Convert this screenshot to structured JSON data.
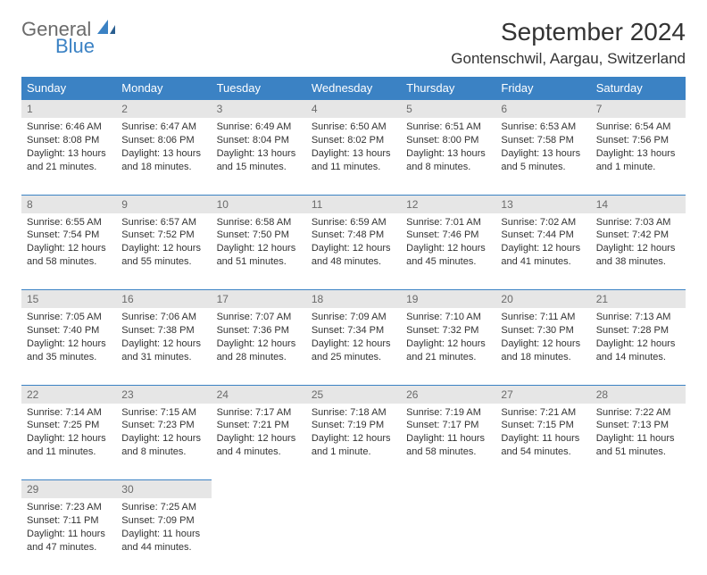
{
  "logo": {
    "general": "General",
    "blue": "Blue"
  },
  "title": "September 2024",
  "location": "Gontenschwil, Aargau, Switzerland",
  "colors": {
    "header_bg": "#3b82c4",
    "header_text": "#ffffff",
    "daynum_bg": "#e6e6e6",
    "daynum_text": "#6b6b6b",
    "border": "#3b82c4",
    "body_text": "#333333",
    "logo_gray": "#6b6b6b",
    "logo_blue": "#3b82c4"
  },
  "weekdays": [
    "Sunday",
    "Monday",
    "Tuesday",
    "Wednesday",
    "Thursday",
    "Friday",
    "Saturday"
  ],
  "weeks": [
    [
      {
        "n": "1",
        "sunrise": "Sunrise: 6:46 AM",
        "sunset": "Sunset: 8:08 PM",
        "day1": "Daylight: 13 hours",
        "day2": "and 21 minutes."
      },
      {
        "n": "2",
        "sunrise": "Sunrise: 6:47 AM",
        "sunset": "Sunset: 8:06 PM",
        "day1": "Daylight: 13 hours",
        "day2": "and 18 minutes."
      },
      {
        "n": "3",
        "sunrise": "Sunrise: 6:49 AM",
        "sunset": "Sunset: 8:04 PM",
        "day1": "Daylight: 13 hours",
        "day2": "and 15 minutes."
      },
      {
        "n": "4",
        "sunrise": "Sunrise: 6:50 AM",
        "sunset": "Sunset: 8:02 PM",
        "day1": "Daylight: 13 hours",
        "day2": "and 11 minutes."
      },
      {
        "n": "5",
        "sunrise": "Sunrise: 6:51 AM",
        "sunset": "Sunset: 8:00 PM",
        "day1": "Daylight: 13 hours",
        "day2": "and 8 minutes."
      },
      {
        "n": "6",
        "sunrise": "Sunrise: 6:53 AM",
        "sunset": "Sunset: 7:58 PM",
        "day1": "Daylight: 13 hours",
        "day2": "and 5 minutes."
      },
      {
        "n": "7",
        "sunrise": "Sunrise: 6:54 AM",
        "sunset": "Sunset: 7:56 PM",
        "day1": "Daylight: 13 hours",
        "day2": "and 1 minute."
      }
    ],
    [
      {
        "n": "8",
        "sunrise": "Sunrise: 6:55 AM",
        "sunset": "Sunset: 7:54 PM",
        "day1": "Daylight: 12 hours",
        "day2": "and 58 minutes."
      },
      {
        "n": "9",
        "sunrise": "Sunrise: 6:57 AM",
        "sunset": "Sunset: 7:52 PM",
        "day1": "Daylight: 12 hours",
        "day2": "and 55 minutes."
      },
      {
        "n": "10",
        "sunrise": "Sunrise: 6:58 AM",
        "sunset": "Sunset: 7:50 PM",
        "day1": "Daylight: 12 hours",
        "day2": "and 51 minutes."
      },
      {
        "n": "11",
        "sunrise": "Sunrise: 6:59 AM",
        "sunset": "Sunset: 7:48 PM",
        "day1": "Daylight: 12 hours",
        "day2": "and 48 minutes."
      },
      {
        "n": "12",
        "sunrise": "Sunrise: 7:01 AM",
        "sunset": "Sunset: 7:46 PM",
        "day1": "Daylight: 12 hours",
        "day2": "and 45 minutes."
      },
      {
        "n": "13",
        "sunrise": "Sunrise: 7:02 AM",
        "sunset": "Sunset: 7:44 PM",
        "day1": "Daylight: 12 hours",
        "day2": "and 41 minutes."
      },
      {
        "n": "14",
        "sunrise": "Sunrise: 7:03 AM",
        "sunset": "Sunset: 7:42 PM",
        "day1": "Daylight: 12 hours",
        "day2": "and 38 minutes."
      }
    ],
    [
      {
        "n": "15",
        "sunrise": "Sunrise: 7:05 AM",
        "sunset": "Sunset: 7:40 PM",
        "day1": "Daylight: 12 hours",
        "day2": "and 35 minutes."
      },
      {
        "n": "16",
        "sunrise": "Sunrise: 7:06 AM",
        "sunset": "Sunset: 7:38 PM",
        "day1": "Daylight: 12 hours",
        "day2": "and 31 minutes."
      },
      {
        "n": "17",
        "sunrise": "Sunrise: 7:07 AM",
        "sunset": "Sunset: 7:36 PM",
        "day1": "Daylight: 12 hours",
        "day2": "and 28 minutes."
      },
      {
        "n": "18",
        "sunrise": "Sunrise: 7:09 AM",
        "sunset": "Sunset: 7:34 PM",
        "day1": "Daylight: 12 hours",
        "day2": "and 25 minutes."
      },
      {
        "n": "19",
        "sunrise": "Sunrise: 7:10 AM",
        "sunset": "Sunset: 7:32 PM",
        "day1": "Daylight: 12 hours",
        "day2": "and 21 minutes."
      },
      {
        "n": "20",
        "sunrise": "Sunrise: 7:11 AM",
        "sunset": "Sunset: 7:30 PM",
        "day1": "Daylight: 12 hours",
        "day2": "and 18 minutes."
      },
      {
        "n": "21",
        "sunrise": "Sunrise: 7:13 AM",
        "sunset": "Sunset: 7:28 PM",
        "day1": "Daylight: 12 hours",
        "day2": "and 14 minutes."
      }
    ],
    [
      {
        "n": "22",
        "sunrise": "Sunrise: 7:14 AM",
        "sunset": "Sunset: 7:25 PM",
        "day1": "Daylight: 12 hours",
        "day2": "and 11 minutes."
      },
      {
        "n": "23",
        "sunrise": "Sunrise: 7:15 AM",
        "sunset": "Sunset: 7:23 PM",
        "day1": "Daylight: 12 hours",
        "day2": "and 8 minutes."
      },
      {
        "n": "24",
        "sunrise": "Sunrise: 7:17 AM",
        "sunset": "Sunset: 7:21 PM",
        "day1": "Daylight: 12 hours",
        "day2": "and 4 minutes."
      },
      {
        "n": "25",
        "sunrise": "Sunrise: 7:18 AM",
        "sunset": "Sunset: 7:19 PM",
        "day1": "Daylight: 12 hours",
        "day2": "and 1 minute."
      },
      {
        "n": "26",
        "sunrise": "Sunrise: 7:19 AM",
        "sunset": "Sunset: 7:17 PM",
        "day1": "Daylight: 11 hours",
        "day2": "and 58 minutes."
      },
      {
        "n": "27",
        "sunrise": "Sunrise: 7:21 AM",
        "sunset": "Sunset: 7:15 PM",
        "day1": "Daylight: 11 hours",
        "day2": "and 54 minutes."
      },
      {
        "n": "28",
        "sunrise": "Sunrise: 7:22 AM",
        "sunset": "Sunset: 7:13 PM",
        "day1": "Daylight: 11 hours",
        "day2": "and 51 minutes."
      }
    ],
    [
      {
        "n": "29",
        "sunrise": "Sunrise: 7:23 AM",
        "sunset": "Sunset: 7:11 PM",
        "day1": "Daylight: 11 hours",
        "day2": "and 47 minutes."
      },
      {
        "n": "30",
        "sunrise": "Sunrise: 7:25 AM",
        "sunset": "Sunset: 7:09 PM",
        "day1": "Daylight: 11 hours",
        "day2": "and 44 minutes."
      },
      null,
      null,
      null,
      null,
      null
    ]
  ]
}
